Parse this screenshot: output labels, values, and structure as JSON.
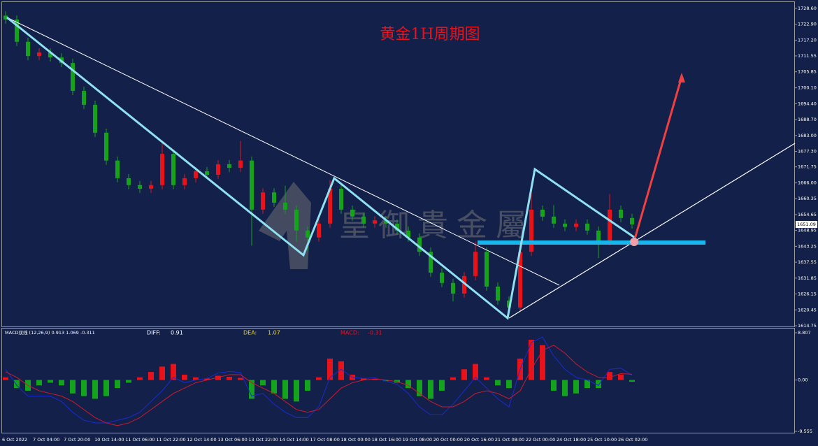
{
  "chart_data": {
    "type": "candlestick",
    "title": "黄金1H周期图",
    "watermark": "皇御貴金屬",
    "current_price": {
      "value": 1651.09,
      "label": "1651.09"
    },
    "open": [
      1726.0,
      1724.6,
      1716.6,
      1711.5,
      1712.8,
      1711.0,
      1709.0,
      1699.0,
      1694.0,
      1684.0,
      1674.0,
      1667.7,
      1665.2,
      1663.9,
      1665.2,
      1676.4,
      1665.2,
      1667.7,
      1670.2,
      1668.9,
      1672.7,
      1671.4,
      1674.0,
      1656.4,
      1662.6,
      1658.9,
      1656.4,
      1648.9,
      1646.4,
      1651.4,
      1663.9,
      1656.4,
      1653.9,
      1651.4,
      1652.6,
      1651.4,
      1648.9,
      1646.4,
      1641.3,
      1633.8,
      1630.1,
      1626.3,
      1632.6,
      1641.3,
      1628.8,
      1623.8,
      1621.3,
      1641.3,
      1656.4,
      1653.9,
      1651.4,
      1650.2,
      1651.4,
      1648.9,
      1645.1,
      1656.4,
      1653.4
    ],
    "high": [
      1727.5,
      1726.1,
      1718.1,
      1714.3,
      1714.3,
      1712.5,
      1710.5,
      1700.5,
      1695.5,
      1685.5,
      1675.5,
      1669.2,
      1666.7,
      1666.7,
      1681.0,
      1677.9,
      1669.2,
      1671.7,
      1671.7,
      1674.2,
      1674.2,
      1681.0,
      1675.5,
      1664.1,
      1664.1,
      1665.0,
      1657.9,
      1650.4,
      1652.9,
      1667.0,
      1665.4,
      1657.9,
      1655.4,
      1654.1,
      1654.1,
      1652.9,
      1650.4,
      1647.9,
      1642.8,
      1635.3,
      1631.6,
      1634.1,
      1645.0,
      1642.8,
      1630.3,
      1625.3,
      1642.8,
      1663.0,
      1657.9,
      1658.0,
      1652.9,
      1652.9,
      1652.9,
      1650.4,
      1662.0,
      1657.9,
      1654.9
    ],
    "low": [
      1723.1,
      1715.1,
      1710.0,
      1710.0,
      1709.5,
      1707.5,
      1697.5,
      1692.5,
      1682.5,
      1672.5,
      1666.2,
      1663.7,
      1662.4,
      1662.4,
      1663.7,
      1663.7,
      1663.7,
      1666.2,
      1667.4,
      1667.4,
      1669.9,
      1669.9,
      1643.5,
      1654.9,
      1657.4,
      1654.9,
      1645.0,
      1641.5,
      1644.9,
      1649.9,
      1654.9,
      1652.4,
      1649.9,
      1649.9,
      1649.9,
      1647.4,
      1644.9,
      1639.8,
      1632.3,
      1628.6,
      1623.5,
      1624.8,
      1631.1,
      1627.3,
      1622.3,
      1618.5,
      1619.8,
      1639.8,
      1652.4,
      1649.9,
      1648.7,
      1648.7,
      1647.4,
      1639.0,
      1643.6,
      1651.9,
      1649.6
    ],
    "close": [
      1724.6,
      1716.6,
      1711.5,
      1712.8,
      1711.0,
      1709.0,
      1699.0,
      1694.0,
      1684.0,
      1674.0,
      1667.7,
      1665.2,
      1663.9,
      1665.2,
      1676.4,
      1665.2,
      1667.7,
      1670.2,
      1668.9,
      1672.7,
      1671.4,
      1674.0,
      1656.4,
      1662.6,
      1658.9,
      1656.4,
      1648.9,
      1646.4,
      1651.4,
      1663.9,
      1656.4,
      1653.9,
      1651.4,
      1652.6,
      1651.4,
      1648.9,
      1646.4,
      1641.3,
      1633.8,
      1630.1,
      1626.3,
      1632.6,
      1641.3,
      1628.8,
      1623.8,
      1621.3,
      1641.3,
      1656.4,
      1653.9,
      1651.4,
      1650.2,
      1651.4,
      1648.9,
      1645.1,
      1656.4,
      1653.4,
      1651.1
    ],
    "up_color": "#e8121b",
    "down_color": "#15a21c",
    "ylim": [
      1614.25,
      1731.1
    ],
    "yticks": [
      {
        "value": 1728.6,
        "label": "1728.60"
      },
      {
        "value": 1722.9,
        "label": "1722.90"
      },
      {
        "value": 1717.2,
        "label": "1717.20"
      },
      {
        "value": 1711.55,
        "label": "1711.55"
      },
      {
        "value": 1705.85,
        "label": "1705.85"
      },
      {
        "value": 1700.1,
        "label": "1700.10"
      },
      {
        "value": 1694.4,
        "label": "1694.40"
      },
      {
        "value": 1688.7,
        "label": "1688.70"
      },
      {
        "value": 1683.0,
        "label": "1683.00"
      },
      {
        "value": 1677.3,
        "label": "1677.30"
      },
      {
        "value": 1671.75,
        "label": "1671.75"
      },
      {
        "value": 1666.0,
        "label": "1666.00"
      },
      {
        "value": 1660.35,
        "label": "1660.35"
      },
      {
        "value": 1654.65,
        "label": "1654.65"
      },
      {
        "value": 1648.95,
        "label": "1648.95"
      },
      {
        "value": 1643.25,
        "label": "1643.25"
      },
      {
        "value": 1637.55,
        "label": "1637.55"
      },
      {
        "value": 1631.85,
        "label": "1631.85"
      },
      {
        "value": 1626.15,
        "label": "1626.15"
      },
      {
        "value": 1620.45,
        "label": "1620.45"
      },
      {
        "value": 1614.75,
        "label": "1614.75"
      }
    ],
    "xlabels": [
      "6 Oct 2022",
      "7 Oct 04:00",
      "7 Oct 20:00",
      "10 Oct 14:00",
      "11 Oct 06:00",
      "11 Oct 22:00",
      "12 Oct 14:00",
      "13 Oct 06:00",
      "13 Oct 22:00",
      "14 Oct 14:00",
      "17 Oct 08:00",
      "18 Oct 00:00",
      "18 Oct 16:00",
      "19 Oct 08:00",
      "20 Oct 00:00",
      "20 Oct 16:00",
      "21 Oct 08:00",
      "22 Oct 00:00",
      "24 Oct 18:00",
      "25 Oct 10:00",
      "26 Oct 02:00"
    ],
    "macd": {
      "title": "MACD双线 (12,26,9) 0.913 1.069 -0.311",
      "diff_label": "DIFF:",
      "diff_value": "0.91",
      "dea_label": "DEA:",
      "dea_value": "1.07",
      "macd_label": "MACD:",
      "macd_value": "-0.31",
      "ylim": [
        -10.99,
        9.59
      ],
      "yticks": [
        8.807,
        {
          "value": 0,
          "label": "0.00"
        },
        -9.555
      ],
      "histogram": [
        0.5,
        -1.5,
        -2.0,
        -1.0,
        -0.5,
        -1.0,
        -2.5,
        -3.0,
        -3.5,
        -3.0,
        -1.5,
        -0.5,
        0.5,
        1.5,
        2.5,
        3.0,
        1.0,
        0.5,
        0.3,
        0.8,
        0.6,
        0.4,
        -3.5,
        -1.0,
        -2.5,
        -3.5,
        -4.0,
        -2.0,
        0.5,
        4.0,
        3.5,
        1.0,
        0.3,
        0.2,
        -0.2,
        -0.5,
        -1.5,
        -3.0,
        -3.5,
        -2.0,
        0.5,
        2.0,
        3.0,
        0.5,
        -1.0,
        -1.5,
        4.0,
        7.5,
        6.5,
        -2.0,
        -3.0,
        -2.5,
        -1.5,
        -1.5,
        1.5,
        1.0,
        -0.31
      ],
      "diff": [
        2.0,
        -1.0,
        -3.0,
        -3.0,
        -3.0,
        -4.0,
        -6.0,
        -7.5,
        -8.0,
        -8.0,
        -7.5,
        -7.0,
        -6.0,
        -4.0,
        -2.0,
        0.5,
        -0.5,
        0,
        0.3,
        1.3,
        1.6,
        1.4,
        -3.0,
        -2.5,
        -4.5,
        -6.0,
        -7.0,
        -7.0,
        -5.0,
        0.5,
        2.0,
        0.5,
        0.3,
        0.4,
        -0.2,
        -0.8,
        -2.5,
        -5.0,
        -6.5,
        -6.5,
        -4.5,
        -2.0,
        0.5,
        -1.5,
        -3.5,
        -5.0,
        2.0,
        7.0,
        8.0,
        4.5,
        2.0,
        0.5,
        0,
        -1.0,
        2.0,
        2.2,
        0.91
      ],
      "dea": [
        1.5,
        0.5,
        -1,
        -2,
        -2.5,
        -3,
        -4,
        -5.5,
        -7,
        -8,
        -8.5,
        -8,
        -7,
        -5.5,
        -4,
        -2.5,
        -1.5,
        -0.5,
        0,
        0.5,
        1,
        1,
        -0.5,
        -1.5,
        -2.5,
        -4,
        -5.5,
        -6,
        -5.5,
        -3.5,
        -1.5,
        -0.5,
        0,
        0.2,
        0,
        -0.3,
        -1,
        -2.5,
        -4,
        -5,
        -5,
        -4,
        -2.5,
        -2,
        -2.5,
        -3.5,
        -2,
        2,
        5.5,
        6.5,
        5,
        3,
        1.5,
        0.5,
        0.5,
        1.2,
        1.07
      ],
      "diff_color": "#1a2bd0",
      "dea_color": "#d01a2b"
    }
  }
}
